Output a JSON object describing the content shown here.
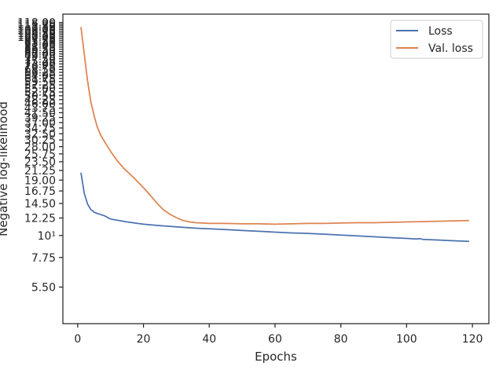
{
  "chart_data": {
    "type": "line",
    "title": "",
    "xlabel": "Epochs",
    "ylabel": "Negative log-likelihood",
    "xlim": [
      -4.5,
      125
    ],
    "ylim_log": [
      3.6,
      130
    ],
    "y_scale": "log",
    "x_ticks": [
      0,
      20,
      40,
      60,
      80,
      100,
      120
    ],
    "x_tick_labels": [
      "0",
      "20",
      "40",
      "60",
      "80",
      "100",
      "120"
    ],
    "y_ticks": [
      5.5,
      7.75,
      10,
      12.25,
      14.5,
      16.75,
      19,
      21.25,
      23.5,
      25.75,
      28,
      30.25,
      32.5,
      34.75,
      37,
      39.25,
      41.5,
      43.75,
      46,
      48.25,
      50.5,
      52.75,
      55,
      57.25,
      59.5,
      61.75,
      64,
      66.25,
      68.5,
      70.75,
      73,
      75.25,
      77.5,
      79.75,
      82,
      84.25,
      86.5,
      88.75,
      91,
      93.25,
      95.5,
      97.75,
      100,
      102.25,
      104.5,
      106.75,
      109,
      111.25,
      113.5,
      115.75,
      118
    ],
    "y_tick_labels": [
      "5.50",
      "7.75",
      "10¹",
      "12.25",
      "14.50",
      "16.75",
      "19.00",
      "21.25",
      "23.50",
      "25.75",
      "28.00",
      "30.25",
      "32.50",
      "34.75",
      "37.00",
      "39.25",
      "41.50",
      "43.75",
      "46.00",
      "48.25",
      "50.50",
      "52.75",
      "55.00",
      "57.25",
      "59.50",
      "61.75",
      "64.00",
      "66.25",
      "68.50",
      "70.75",
      "73.00",
      "75.25",
      "77.50",
      "79.75",
      "82.00",
      "84.25",
      "86.50",
      "88.75",
      "91.00",
      "93.25",
      "95.50",
      "97.75",
      "100.00",
      "102.25",
      "104.50",
      "106.75",
      "109.00",
      "111.25",
      "113.50",
      "115.75",
      "118.00"
    ],
    "legend_position": "top-right",
    "grid": false,
    "series": [
      {
        "name": "Loss",
        "color": "#4c72b0",
        "x": [
          1,
          2,
          3,
          4,
          5,
          6,
          8,
          10,
          15,
          20,
          25,
          30,
          35,
          40,
          45,
          50,
          55,
          60,
          65,
          70,
          75,
          80,
          85,
          90,
          95,
          100,
          103,
          104,
          105,
          110,
          115,
          119
        ],
        "y": [
          20.7,
          16.3,
          14.4,
          13.5,
          13.1,
          12.9,
          12.6,
          12.1,
          11.7,
          11.4,
          11.2,
          11.05,
          10.9,
          10.8,
          10.7,
          10.6,
          10.5,
          10.4,
          10.3,
          10.25,
          10.15,
          10.05,
          9.95,
          9.85,
          9.75,
          9.67,
          9.6,
          9.65,
          9.55,
          9.48,
          9.4,
          9.35
        ]
      },
      {
        "name": "Val. loss",
        "color": "#dd8452",
        "x": [
          1,
          2,
          3,
          4,
          5,
          6,
          7,
          8,
          10,
          12,
          14,
          16,
          18,
          20,
          22,
          24,
          26,
          28,
          30,
          32,
          34,
          36,
          38,
          40,
          45,
          50,
          55,
          60,
          65,
          70,
          75,
          80,
          85,
          90,
          95,
          100,
          105,
          110,
          115,
          119
        ],
        "y": [
          112,
          82,
          60,
          47,
          40,
          35,
          32,
          30,
          26.5,
          23.8,
          21.8,
          20.3,
          18.8,
          17.4,
          16.0,
          14.6,
          13.5,
          12.8,
          12.3,
          11.9,
          11.7,
          11.6,
          11.55,
          11.5,
          11.5,
          11.45,
          11.45,
          11.4,
          11.45,
          11.5,
          11.5,
          11.55,
          11.6,
          11.6,
          11.65,
          11.7,
          11.75,
          11.8,
          11.85,
          11.9
        ]
      }
    ]
  }
}
